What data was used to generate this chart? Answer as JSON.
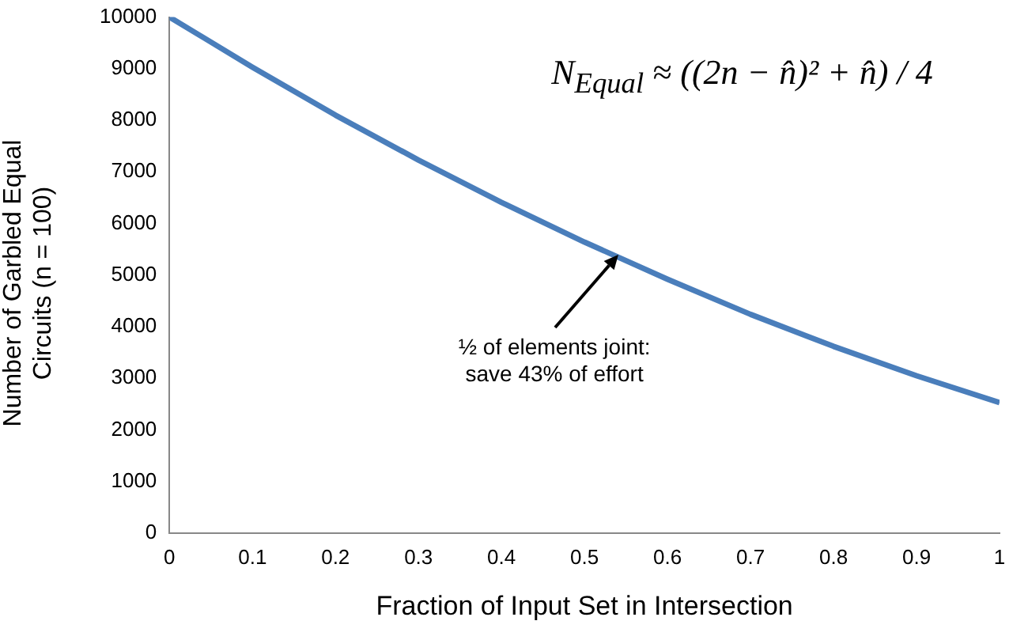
{
  "chart_data": {
    "type": "line",
    "xlabel": "Fraction of Input Set in Intersection",
    "ylabel": "Number of Garbled Equal Circuits (n = 100)",
    "x": [
      0,
      0.1,
      0.2,
      0.3,
      0.4,
      0.5,
      0.6,
      0.7,
      0.8,
      0.9,
      1
    ],
    "series": [
      {
        "color": "#4a7ebb",
        "values": [
          10000,
          9030,
          8100,
          7230,
          6410,
          5640,
          4920,
          4240,
          3620,
          3050,
          2530
        ]
      }
    ],
    "xlim": [
      0,
      1
    ],
    "xticks": [
      0,
      0.1,
      0.2,
      0.3,
      0.4,
      0.5,
      0.6,
      0.7,
      0.8,
      0.9,
      1
    ],
    "ylim": [
      0,
      10000
    ],
    "yticks": [
      0,
      1000,
      2000,
      3000,
      4000,
      5000,
      6000,
      7000,
      8000,
      9000,
      10000
    ],
    "grid": false,
    "legend": false,
    "marker": "none",
    "line_style": "solid",
    "annotations": [
      "N$_{Equal}$  ≈  ((2n − n̂)² + n̂) / 4",
      {
        "text": "½ of elements joint: save 43% of effort",
        "x": 0.54,
        "y": 5400
      }
    ]
  }
}
